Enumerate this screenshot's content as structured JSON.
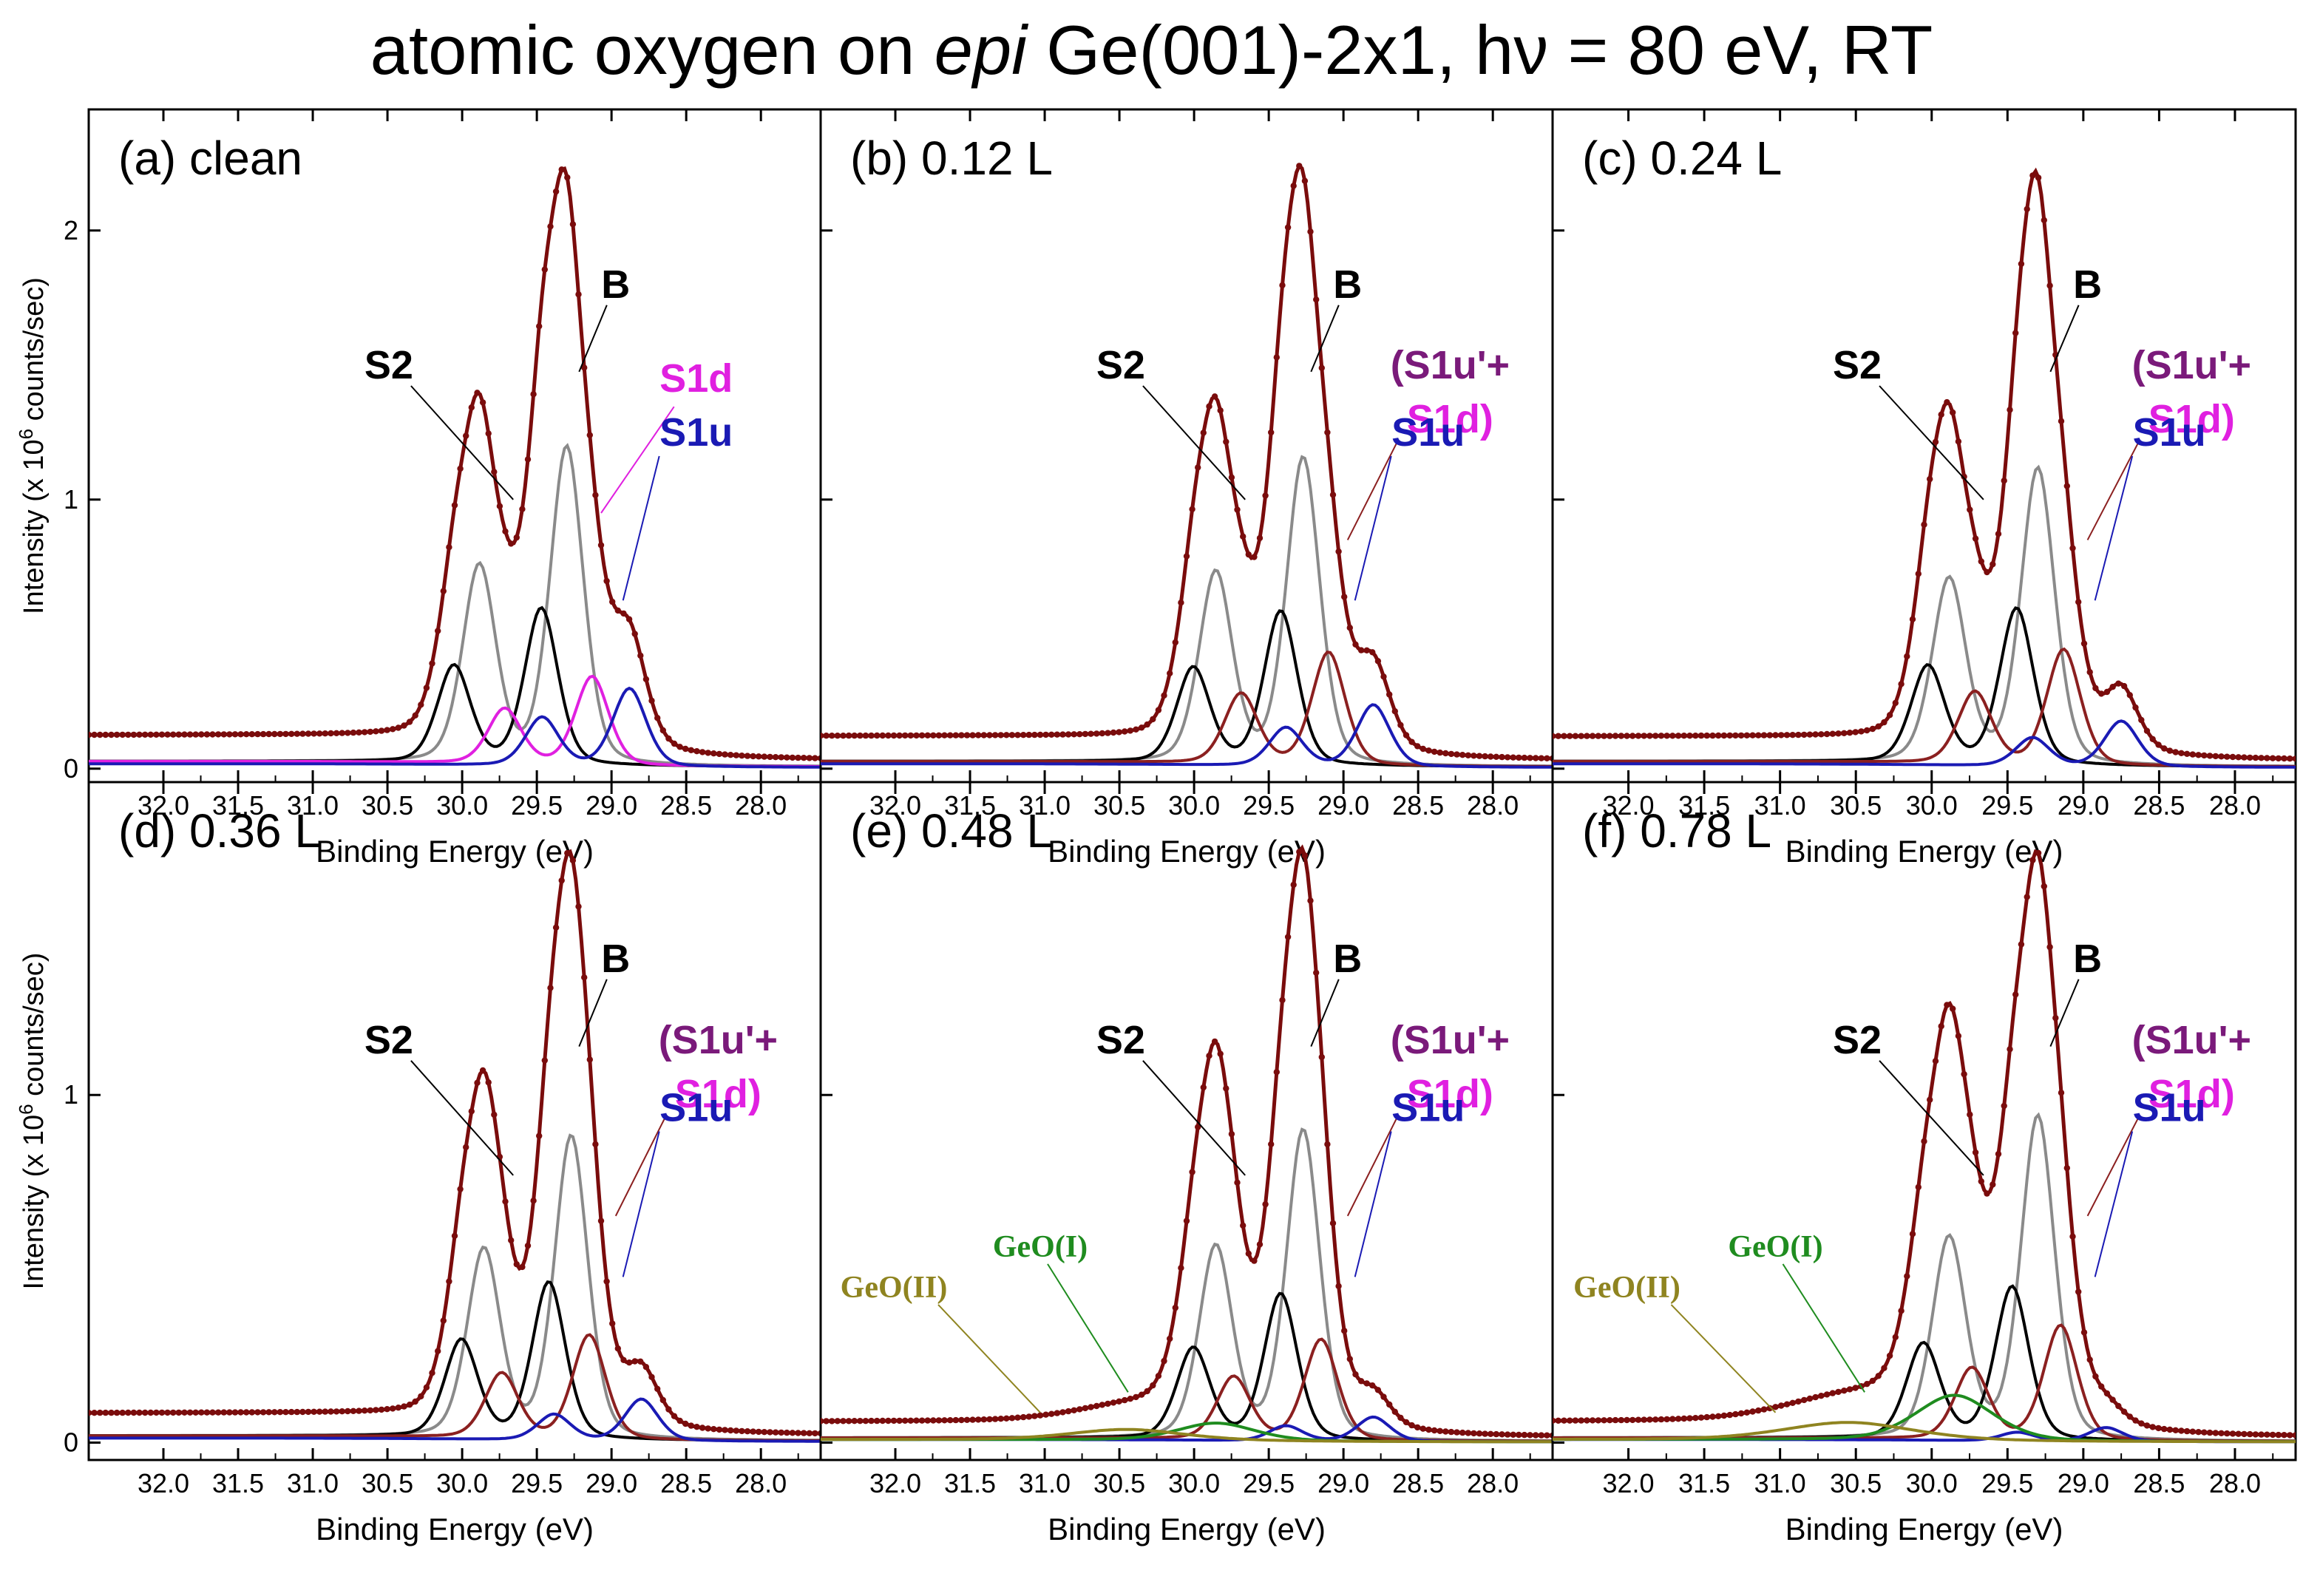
{
  "figure_title": {
    "prefix": "atomic oxygen on ",
    "italic": "epi",
    "suffix": " Ge(001)-2x1, hν = 80 eV, RT"
  },
  "colors": {
    "total": "#7a0c0c",
    "B": "#8a8a8a",
    "S2": "#000000",
    "S1d": "#e020e0",
    "S1u_plus_S1d": "#8b2020",
    "S1u": "#1a1ab4",
    "GeO_I": "#1f8c1f",
    "GeO_II": "#8f8420"
  },
  "axis_labels": {
    "y": "Intensity (x 10",
    "y_sup": "6",
    "y_tail": " counts/sec)",
    "x": "Binding Energy (eV)"
  },
  "chart_data": [
    {
      "type": "line",
      "panel": "a",
      "title": "(a) clean",
      "xlabel": "Binding Energy (eV)",
      "ylabel": "Intensity (x 10^6 counts/sec)",
      "xlim": [
        32.5,
        27.6
      ],
      "ylim": [
        -0.05,
        2.45
      ],
      "xticks": [
        "32.0",
        "31.5",
        "31.0",
        "30.5",
        "30.0",
        "29.5",
        "29.0",
        "28.5",
        "28.0"
      ],
      "yticks": [
        "0",
        "1",
        "2"
      ],
      "background": 0.09,
      "peaks": [
        {
          "name": "B",
          "center": 29.3,
          "height": 1.18,
          "color": "#8a8a8a",
          "so": true
        },
        {
          "name": "S2",
          "center": 29.47,
          "height": 0.58,
          "color": "#000000",
          "so": true
        },
        {
          "name": "S1d",
          "center": 29.13,
          "height": 0.33,
          "color": "#e020e0",
          "so": true
        },
        {
          "name": "S1u",
          "center": 28.88,
          "height": 0.29,
          "color": "#1a1ab4",
          "so": true
        }
      ],
      "total_peak": {
        "x": 29.3,
        "y": 2.23
      },
      "labels": [
        {
          "text": "B",
          "color": "#000000"
        },
        {
          "text": "S2",
          "color": "#000000"
        },
        {
          "text": "S1d",
          "color": "#e020e0"
        },
        {
          "text": "S1u",
          "color": "#1a1ab4"
        }
      ]
    },
    {
      "type": "line",
      "panel": "b",
      "title": "(b) 0.12 L",
      "xlabel": "Binding Energy (eV)",
      "ylabel": "",
      "xlim": [
        32.5,
        27.6
      ],
      "ylim": [
        -0.05,
        2.45
      ],
      "xticks": [
        "32.0",
        "31.5",
        "31.0",
        "30.5",
        "30.0",
        "29.5",
        "29.0",
        "28.5",
        "28.0"
      ],
      "yticks": [],
      "background": 0.09,
      "peaks": [
        {
          "name": "B",
          "center": 29.27,
          "height": 1.14,
          "color": "#8a8a8a",
          "so": true
        },
        {
          "name": "S2",
          "center": 29.42,
          "height": 0.57,
          "color": "#000000",
          "so": true
        },
        {
          "name": "(S1u'+S1d)",
          "center": 29.1,
          "height": 0.42,
          "color": "#8b2020",
          "so": true
        },
        {
          "name": "S1u",
          "center": 28.8,
          "height": 0.23,
          "color": "#1a1ab4",
          "so": true
        }
      ],
      "total_peak": {
        "x": 29.27,
        "y": 2.24
      },
      "labels": [
        {
          "text": "B",
          "color": "#000000"
        },
        {
          "text": "S2",
          "color": "#000000"
        },
        {
          "text": "(S1u'+",
          "color": "#7a1a7a"
        },
        {
          "text": "S1d)",
          "color": "#e020e0"
        },
        {
          "text": "S1u",
          "color": "#1a1ab4"
        }
      ]
    },
    {
      "type": "line",
      "panel": "c",
      "title": "(c) 0.24 L",
      "xlabel": "Binding Energy (eV)",
      "ylabel": "",
      "xlim": [
        32.5,
        27.6
      ],
      "ylim": [
        -0.05,
        2.45
      ],
      "xticks": [
        "32.0",
        "31.5",
        "31.0",
        "30.5",
        "30.0",
        "29.5",
        "29.0",
        "28.5",
        "28.0"
      ],
      "yticks": [],
      "background": 0.09,
      "peaks": [
        {
          "name": "B",
          "center": 29.3,
          "height": 1.1,
          "color": "#8a8a8a",
          "so": true
        },
        {
          "name": "S2",
          "center": 29.44,
          "height": 0.58,
          "color": "#000000",
          "so": true
        },
        {
          "name": "(S1u'+S1d)",
          "center": 29.13,
          "height": 0.43,
          "color": "#8b2020",
          "so": true
        },
        {
          "name": "S1u",
          "center": 28.75,
          "height": 0.17,
          "color": "#1a1ab4",
          "so": true
        }
      ],
      "total_peak": {
        "x": 29.3,
        "y": 2.22
      },
      "labels": [
        {
          "text": "B",
          "color": "#000000"
        },
        {
          "text": "S2",
          "color": "#000000"
        },
        {
          "text": "(S1u'+",
          "color": "#7a1a7a"
        },
        {
          "text": "S1d)",
          "color": "#e020e0"
        },
        {
          "text": "S1u",
          "color": "#1a1ab4"
        }
      ]
    },
    {
      "type": "line",
      "panel": "d",
      "title": "(d) 0.36 L",
      "xlabel": "Binding Energy (eV)",
      "ylabel": "Intensity (x 10^6 counts/sec)",
      "xlim": [
        32.5,
        27.6
      ],
      "ylim": [
        -0.05,
        1.9
      ],
      "xticks": [
        "32.0",
        "31.5",
        "31.0",
        "30.5",
        "30.0",
        "29.5",
        "29.0",
        "28.5",
        "28.0"
      ],
      "yticks": [
        "0",
        "1"
      ],
      "background": 0.065,
      "peaks": [
        {
          "name": "B",
          "center": 29.27,
          "height": 0.87,
          "color": "#8a8a8a",
          "so": true
        },
        {
          "name": "S2",
          "center": 29.42,
          "height": 0.45,
          "color": "#000000",
          "so": true
        },
        {
          "name": "(S1u'+S1d)",
          "center": 29.15,
          "height": 0.3,
          "color": "#8b2020",
          "so": true
        },
        {
          "name": "S1u",
          "center": 28.8,
          "height": 0.12,
          "color": "#1a1ab4",
          "so": true
        }
      ],
      "total_peak": {
        "x": 29.27,
        "y": 1.7
      },
      "labels": [
        {
          "text": "B",
          "color": "#000000"
        },
        {
          "text": "S2",
          "color": "#000000"
        },
        {
          "text": "(S1u'+",
          "color": "#7a1a7a"
        },
        {
          "text": "S1d)",
          "color": "#e020e0"
        },
        {
          "text": "S1u",
          "color": "#1a1ab4"
        }
      ]
    },
    {
      "type": "line",
      "panel": "e",
      "title": "(e) 0.48 L",
      "xlabel": "Binding Energy (eV)",
      "ylabel": "",
      "xlim": [
        32.5,
        27.6
      ],
      "ylim": [
        -0.05,
        1.9
      ],
      "xticks": [
        "32.0",
        "31.5",
        "31.0",
        "30.5",
        "30.0",
        "29.5",
        "29.0",
        "28.5",
        "28.0"
      ],
      "yticks": [],
      "background": 0.045,
      "peaks": [
        {
          "name": "B",
          "center": 29.27,
          "height": 0.89,
          "color": "#8a8a8a",
          "so": true
        },
        {
          "name": "S2",
          "center": 29.42,
          "height": 0.42,
          "color": "#000000",
          "so": true
        },
        {
          "name": "(S1u'+S1d)",
          "center": 29.15,
          "height": 0.29,
          "color": "#8b2020",
          "so": true
        },
        {
          "name": "S1u",
          "center": 28.8,
          "height": 0.07,
          "color": "#1a1ab4",
          "so": true
        },
        {
          "name": "GeO(I)",
          "center": 29.85,
          "height": 0.05,
          "color": "#1f8c1f",
          "so": false,
          "width": 0.55
        },
        {
          "name": "GeO(II)",
          "center": 30.45,
          "height": 0.03,
          "color": "#8f8420",
          "so": false,
          "width": 0.8
        }
      ],
      "total_peak": {
        "x": 29.27,
        "y": 1.71
      },
      "labels": [
        {
          "text": "B",
          "color": "#000000"
        },
        {
          "text": "S2",
          "color": "#000000"
        },
        {
          "text": "(S1u'+",
          "color": "#7a1a7a"
        },
        {
          "text": "S1d)",
          "color": "#e020e0"
        },
        {
          "text": "S1u",
          "color": "#1a1ab4"
        },
        {
          "text": "GeO(I)",
          "color": "#1f8c1f"
        },
        {
          "text": "GeO(II)",
          "color": "#8f8420"
        }
      ]
    },
    {
      "type": "line",
      "panel": "f",
      "title": "(f) 0.78 L",
      "xlabel": "Binding Energy (eV)",
      "ylabel": "",
      "xlim": [
        32.5,
        27.6
      ],
      "ylim": [
        -0.05,
        1.9
      ],
      "xticks": [
        "32.0",
        "31.5",
        "31.0",
        "30.5",
        "30.0",
        "29.5",
        "29.0",
        "28.5",
        "28.0"
      ],
      "yticks": [],
      "background": 0.045,
      "peaks": [
        {
          "name": "B",
          "center": 29.3,
          "height": 0.93,
          "color": "#8a8a8a",
          "so": true
        },
        {
          "name": "S2",
          "center": 29.47,
          "height": 0.44,
          "color": "#000000",
          "so": true
        },
        {
          "name": "(S1u'+S1d)",
          "center": 29.15,
          "height": 0.33,
          "color": "#8b2020",
          "so": true
        },
        {
          "name": "S1u",
          "center": 28.85,
          "height": 0.04,
          "color": "#1a1ab4",
          "so": true
        },
        {
          "name": "GeO(I)",
          "center": 29.85,
          "height": 0.13,
          "color": "#1f8c1f",
          "so": false,
          "width": 0.55
        },
        {
          "name": "GeO(II)",
          "center": 30.55,
          "height": 0.05,
          "color": "#8f8420",
          "so": false,
          "width": 0.9
        }
      ],
      "total_peak": {
        "x": 29.3,
        "y": 1.7
      },
      "labels": [
        {
          "text": "B",
          "color": "#000000"
        },
        {
          "text": "S2",
          "color": "#000000"
        },
        {
          "text": "(S1u'+",
          "color": "#7a1a7a"
        },
        {
          "text": "S1d)",
          "color": "#e020e0"
        },
        {
          "text": "S1u",
          "color": "#1a1ab4"
        },
        {
          "text": "GeO(I)",
          "color": "#1f8c1f"
        },
        {
          "text": "GeO(II)",
          "color": "#8f8420"
        }
      ]
    }
  ]
}
